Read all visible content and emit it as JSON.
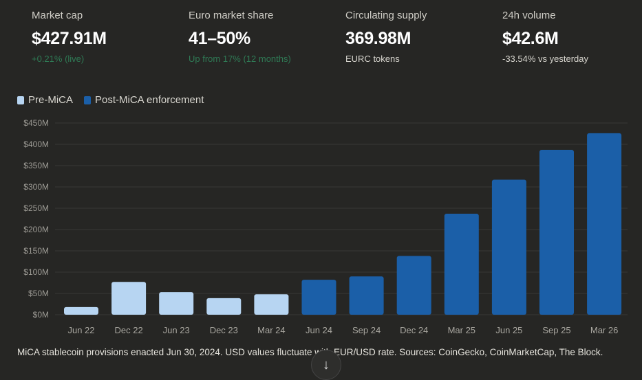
{
  "stats": [
    {
      "label": "Market cap",
      "value": "$427.91M",
      "sub": "+0.21% (live)",
      "sub_color": "green"
    },
    {
      "label": "Euro market share",
      "value": "41–50%",
      "sub": "Up from 17% (12 months)",
      "sub_color": "green"
    },
    {
      "label": "Circulating supply",
      "value": "369.98M",
      "sub": "EURC tokens",
      "sub_color": "neutral"
    },
    {
      "label": "24h volume",
      "value": "$42.6M",
      "sub": "-33.54% vs yesterday",
      "sub_color": "neutral"
    }
  ],
  "colors": {
    "pre": "#b7d5f2",
    "post": "#1b5fa8",
    "green": "#2f7a55",
    "background": "#262624"
  },
  "chart_data": {
    "type": "bar",
    "categories": [
      "Jun 22",
      "Dec 22",
      "Jun 23",
      "Dec 23",
      "Mar 24",
      "Jun 24",
      "Sep 24",
      "Dec 24",
      "Mar 25",
      "Jun 25",
      "Sep 25",
      "Mar 26"
    ],
    "values": [
      18,
      77,
      53,
      39,
      48,
      82,
      90,
      138,
      237,
      317,
      387,
      426
    ],
    "groups": [
      "pre",
      "pre",
      "pre",
      "pre",
      "pre",
      "post",
      "post",
      "post",
      "post",
      "post",
      "post",
      "post"
    ],
    "legend": [
      {
        "key": "pre",
        "name": "Pre-MiCA"
      },
      {
        "key": "post",
        "name": "Post-MiCA enforcement"
      }
    ],
    "legend_position": "top-left",
    "ylim": [
      0,
      450
    ],
    "yticks": [
      0,
      50,
      100,
      150,
      200,
      250,
      300,
      350,
      400,
      450
    ],
    "ytick_labels": [
      "$0M",
      "$50M",
      "$100M",
      "$150M",
      "$200M",
      "$250M",
      "$300M",
      "$350M",
      "$400M",
      "$450M"
    ],
    "grid": true,
    "unit": "USD millions"
  },
  "footnote": "MiCA stablecoin provisions enacted Jun 30, 2024. USD values fluctuate with EUR/USD rate. Sources: CoinGecko, CoinMarketCap, The Block.",
  "scroll_button": {
    "icon": "arrow-down-icon",
    "glyph": "↓"
  }
}
